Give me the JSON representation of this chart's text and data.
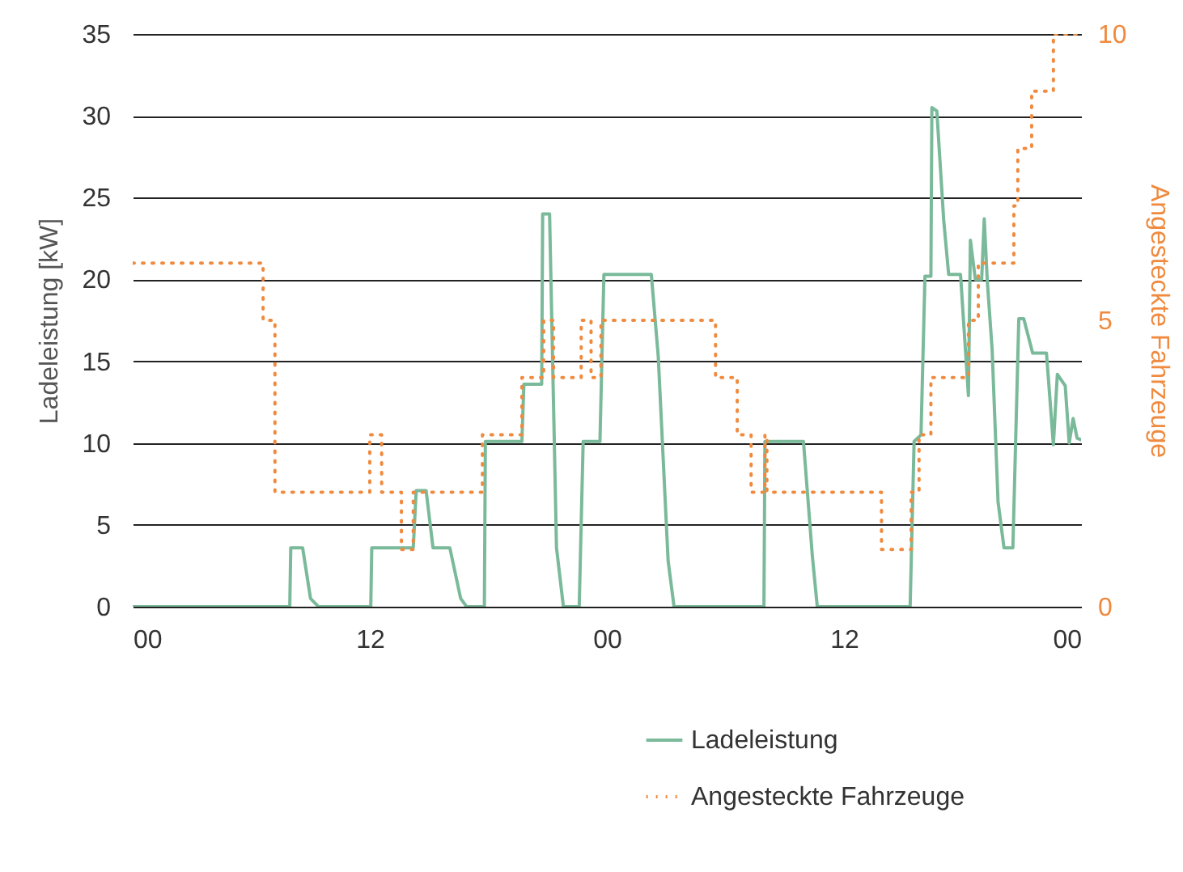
{
  "chart_data": {
    "type": "line",
    "xlim": [
      0,
      48
    ],
    "xticks": [
      {
        "value": 0,
        "label": "00"
      },
      {
        "value": 12,
        "label": "12"
      },
      {
        "value": 24,
        "label": "00"
      },
      {
        "value": 36,
        "label": "12"
      },
      {
        "value": 48,
        "label": "00"
      }
    ],
    "ylabel": "Ladeleistung [kW]",
    "ylim": [
      0,
      35
    ],
    "yticks": [
      0,
      5,
      10,
      15,
      20,
      25,
      30,
      35
    ],
    "y2label": "Angesteckte Fahrzeuge",
    "y2lim": [
      0,
      10
    ],
    "y2ticks": [
      0,
      5,
      10
    ],
    "grid": "y",
    "legend": "bottom right",
    "series": [
      {
        "name": "Ladeleistung",
        "color": "#7aba9a",
        "line_style": "solid",
        "x": [
          0,
          7.95,
          8.0,
          8.6,
          9.0,
          9.4,
          12.05,
          12.1,
          14.2,
          14.35,
          14.85,
          15.2,
          16.05,
          16.6,
          16.9,
          17.8,
          17.85,
          19.7,
          19.8,
          20.7,
          20.75,
          21.1,
          21.45,
          21.8,
          22.6,
          22.8,
          23.65,
          23.85,
          26.25,
          26.6,
          27.1,
          27.4,
          31.95,
          32.0,
          33.95,
          34.4,
          34.65,
          39.35,
          39.55,
          39.9,
          40.1,
          40.4,
          40.45,
          40.7,
          41.05,
          41.3,
          41.9,
          42.3,
          42.4,
          42.65,
          42.97,
          43.1,
          43.25,
          43.5,
          43.8,
          44.1,
          44.55,
          44.85,
          45.1,
          45.55,
          46.25,
          46.6,
          46.8,
          47.2,
          47.4,
          47.6,
          47.8,
          48
        ],
        "values": [
          0,
          0,
          3.6,
          3.6,
          0.5,
          0,
          0,
          3.6,
          3.6,
          7.1,
          7.1,
          3.6,
          3.6,
          0.5,
          0,
          0,
          10.1,
          10.1,
          13.6,
          13.6,
          24,
          24,
          3.6,
          0,
          0,
          10.1,
          10.1,
          20.3,
          20.3,
          15.3,
          2.8,
          0,
          0,
          10.1,
          10.1,
          3.1,
          0,
          0,
          10.1,
          10.5,
          20.2,
          20.2,
          30.5,
          30.3,
          23.6,
          20.3,
          20.3,
          12.9,
          22.4,
          20,
          20,
          23.7,
          20,
          15.7,
          6.4,
          3.6,
          3.6,
          17.6,
          17.6,
          15.5,
          15.5,
          9.9,
          14.2,
          13.5,
          10,
          11.5,
          10.3,
          10.2
        ]
      },
      {
        "name": "Angesteckte Fahrzeuge",
        "type": "step",
        "axis": "y2",
        "color": "#f08a3e",
        "line_style": "dotted",
        "x": [
          0,
          6.6,
          7.2,
          12.0,
          12.6,
          13.6,
          14.2,
          17.7,
          19.7,
          20.8,
          21.3,
          22.7,
          23.2,
          23.7,
          29.5,
          30.6,
          31.3,
          32.0,
          32.1,
          37.9,
          39.4,
          39.8,
          40.4,
          42.3,
          42.8,
          44.6,
          44.8,
          45.5,
          46.6,
          48
        ],
        "values": [
          6,
          5,
          2,
          3,
          2,
          1,
          2,
          3,
          4,
          5,
          4,
          5,
          4,
          5,
          4,
          3,
          2,
          3,
          2,
          1,
          2,
          3,
          4,
          5,
          6,
          7,
          8,
          9,
          10,
          10
        ]
      }
    ]
  }
}
